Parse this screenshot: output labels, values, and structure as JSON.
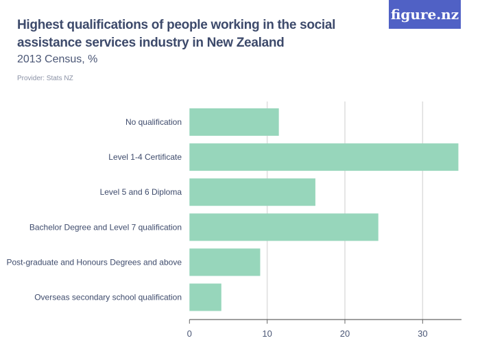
{
  "header": {
    "title": "Highest qualifications of people working in the social assistance services industry in New Zealand",
    "subtitle": "2013 Census, %",
    "provider": "Provider: Stats NZ",
    "logo": "figure.nz"
  },
  "colors": {
    "bar": "#97d6bb",
    "logo_bg": "#5061c5",
    "text": "#3d4a6b",
    "grid": "#dddddd",
    "axis": "#666666"
  },
  "chart_data": {
    "type": "bar",
    "orientation": "horizontal",
    "categories": [
      "No qualification",
      "Level 1-4 Certificate",
      "Level 5 and 6 Diploma",
      "Bachelor Degree and Level 7 qualification",
      "Post-graduate and Honours Degrees and above",
      "Overseas secondary school qualification"
    ],
    "values": [
      11.5,
      34.6,
      16.2,
      24.3,
      9.1,
      4.1
    ],
    "xlim": [
      0,
      35
    ],
    "xticks": [
      0,
      10,
      20,
      30
    ],
    "grid": true,
    "title": "Highest qualifications of people working in the social assistance services industry in New Zealand",
    "subtitle": "2013 Census, %",
    "xlabel": "",
    "ylabel": ""
  }
}
